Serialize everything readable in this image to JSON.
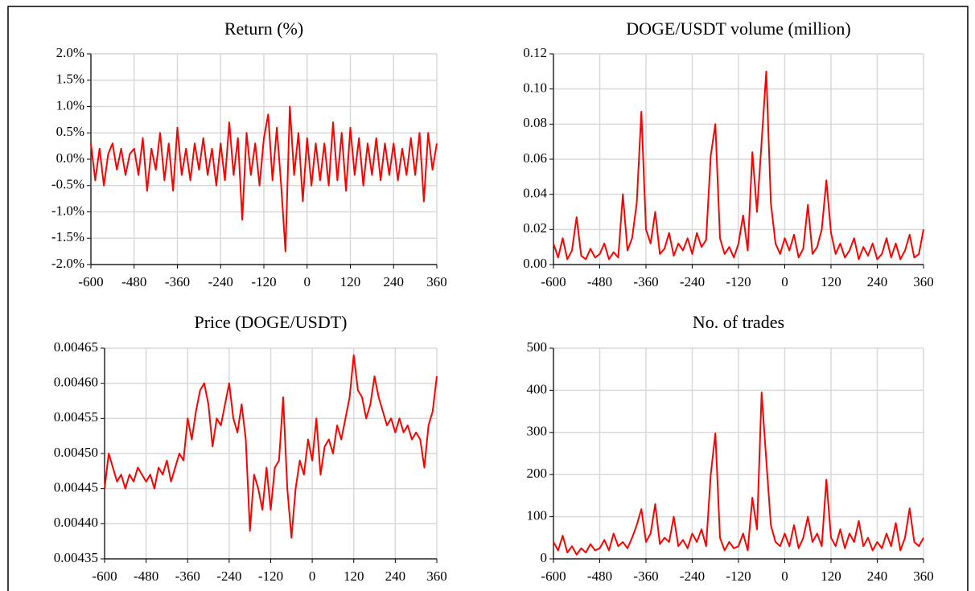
{
  "chart_data": [
    {
      "type": "line",
      "title": "Return (%)",
      "color": "#ff0000",
      "grid": true,
      "x": [
        -600,
        -588,
        -576,
        -564,
        -552,
        -540,
        -528,
        -516,
        -504,
        -492,
        -480,
        -468,
        -456,
        -444,
        -432,
        -420,
        -408,
        -396,
        -384,
        -372,
        -360,
        -348,
        -336,
        -324,
        -312,
        -300,
        -288,
        -276,
        -264,
        -252,
        -240,
        -228,
        -216,
        -204,
        -192,
        -180,
        -168,
        -156,
        -144,
        -132,
        -120,
        -108,
        -96,
        -84,
        -72,
        -60,
        -48,
        -36,
        -24,
        -12,
        0,
        12,
        24,
        36,
        48,
        60,
        72,
        84,
        96,
        108,
        120,
        132,
        144,
        156,
        168,
        180,
        192,
        204,
        216,
        228,
        240,
        252,
        264,
        276,
        288,
        300,
        312,
        324,
        336,
        348,
        360
      ],
      "values": [
        0.3,
        -0.4,
        0.2,
        -0.5,
        0.1,
        0.3,
        -0.2,
        0.2,
        -0.3,
        0.1,
        0.2,
        -0.3,
        0.4,
        -0.6,
        0.2,
        -0.2,
        0.5,
        -0.4,
        0.3,
        -0.6,
        0.6,
        -0.3,
        0.2,
        -0.4,
        0.3,
        -0.2,
        0.4,
        -0.3,
        0.2,
        -0.5,
        0.3,
        -0.4,
        0.7,
        -0.3,
        0.4,
        -1.15,
        0.5,
        -0.3,
        0.3,
        -0.5,
        0.4,
        0.85,
        -0.4,
        0.6,
        -0.5,
        -1.75,
        1.0,
        -0.3,
        0.5,
        -0.8,
        0.4,
        -0.5,
        0.3,
        -0.4,
        0.3,
        -0.5,
        0.7,
        -0.4,
        0.5,
        -0.6,
        0.6,
        -0.3,
        0.4,
        -0.5,
        0.3,
        -0.3,
        0.4,
        -0.4,
        0.3,
        -0.3,
        0.3,
        -0.4,
        0.2,
        -0.3,
        0.4,
        -0.3,
        0.5,
        -0.8,
        0.5,
        -0.2,
        0.3
      ],
      "xlim": [
        -600,
        360
      ],
      "xticks": [
        -600,
        -480,
        -360,
        -240,
        -120,
        0,
        120,
        240,
        360
      ],
      "ylim": [
        -2,
        2
      ],
      "yticks": [
        {
          "value": -2,
          "label": "-2.0%"
        },
        {
          "value": -1.5,
          "label": "-1.5%"
        },
        {
          "value": -1,
          "label": "-1.0%"
        },
        {
          "value": -0.5,
          "label": "-0.5%"
        },
        {
          "value": 0,
          "label": "0.0%"
        },
        {
          "value": 0.5,
          "label": "0.5%"
        },
        {
          "value": 1,
          "label": "1.0%"
        },
        {
          "value": 1.5,
          "label": "1.5%"
        },
        {
          "value": 2,
          "label": "2.0%"
        }
      ]
    },
    {
      "type": "line",
      "title": "DOGE/USDT volume (million)",
      "color": "#ff0000",
      "grid": true,
      "x": [
        -600,
        -588,
        -576,
        -564,
        -552,
        -540,
        -528,
        -516,
        -504,
        -492,
        -480,
        -468,
        -456,
        -444,
        -432,
        -420,
        -408,
        -396,
        -384,
        -372,
        -360,
        -348,
        -336,
        -324,
        -312,
        -300,
        -288,
        -276,
        -264,
        -252,
        -240,
        -228,
        -216,
        -204,
        -192,
        -180,
        -168,
        -156,
        -144,
        -132,
        -120,
        -108,
        -96,
        -84,
        -72,
        -60,
        -48,
        -36,
        -24,
        -12,
        0,
        12,
        24,
        36,
        48,
        60,
        72,
        84,
        96,
        108,
        120,
        132,
        144,
        156,
        168,
        180,
        192,
        204,
        216,
        228,
        240,
        252,
        264,
        276,
        288,
        300,
        312,
        324,
        336,
        348,
        360
      ],
      "values": [
        0.012,
        0.004,
        0.015,
        0.003,
        0.008,
        0.027,
        0.005,
        0.003,
        0.009,
        0.004,
        0.006,
        0.012,
        0.003,
        0.007,
        0.004,
        0.04,
        0.008,
        0.015,
        0.035,
        0.087,
        0.02,
        0.012,
        0.03,
        0.006,
        0.009,
        0.018,
        0.005,
        0.012,
        0.008,
        0.015,
        0.006,
        0.018,
        0.01,
        0.014,
        0.062,
        0.08,
        0.015,
        0.006,
        0.01,
        0.004,
        0.012,
        0.028,
        0.008,
        0.064,
        0.03,
        0.07,
        0.11,
        0.035,
        0.012,
        0.006,
        0.015,
        0.008,
        0.017,
        0.004,
        0.009,
        0.034,
        0.006,
        0.01,
        0.02,
        0.048,
        0.018,
        0.006,
        0.012,
        0.004,
        0.008,
        0.015,
        0.003,
        0.01,
        0.005,
        0.012,
        0.003,
        0.006,
        0.015,
        0.004,
        0.012,
        0.003,
        0.008,
        0.017,
        0.004,
        0.006,
        0.02
      ],
      "xlim": [
        -600,
        360
      ],
      "xticks": [
        -600,
        -480,
        -360,
        -240,
        -120,
        0,
        120,
        240,
        360
      ],
      "ylim": [
        0,
        0.12
      ],
      "yticks": [
        {
          "value": 0,
          "label": "0.00"
        },
        {
          "value": 0.02,
          "label": "0.02"
        },
        {
          "value": 0.04,
          "label": "0.04"
        },
        {
          "value": 0.06,
          "label": "0.06"
        },
        {
          "value": 0.08,
          "label": "0.08"
        },
        {
          "value": 0.1,
          "label": "0.10"
        },
        {
          "value": 0.12,
          "label": "0.12"
        }
      ]
    },
    {
      "type": "line",
      "title": "Price (DOGE/USDT)",
      "color": "#ff0000",
      "grid": true,
      "x": [
        -600,
        -588,
        -576,
        -564,
        -552,
        -540,
        -528,
        -516,
        -504,
        -492,
        -480,
        -468,
        -456,
        -444,
        -432,
        -420,
        -408,
        -396,
        -384,
        -372,
        -360,
        -348,
        -336,
        -324,
        -312,
        -300,
        -288,
        -276,
        -264,
        -252,
        -240,
        -228,
        -216,
        -204,
        -192,
        -180,
        -168,
        -156,
        -144,
        -132,
        -120,
        -108,
        -96,
        -84,
        -72,
        -60,
        -48,
        -36,
        -24,
        -12,
        0,
        12,
        24,
        36,
        48,
        60,
        72,
        84,
        96,
        108,
        120,
        132,
        144,
        156,
        168,
        180,
        192,
        204,
        216,
        228,
        240,
        252,
        264,
        276,
        288,
        300,
        312,
        324,
        336,
        348,
        360
      ],
      "values": [
        0.00445,
        0.0045,
        0.00448,
        0.00446,
        0.00447,
        0.00445,
        0.00447,
        0.00446,
        0.00448,
        0.00447,
        0.00446,
        0.00447,
        0.00445,
        0.00448,
        0.00447,
        0.00449,
        0.00446,
        0.00448,
        0.0045,
        0.00449,
        0.00455,
        0.00452,
        0.00456,
        0.00459,
        0.0046,
        0.00457,
        0.00451,
        0.00455,
        0.00454,
        0.00457,
        0.0046,
        0.00455,
        0.00453,
        0.00457,
        0.00452,
        0.00439,
        0.00447,
        0.00445,
        0.00442,
        0.00448,
        0.00442,
        0.00448,
        0.00449,
        0.00458,
        0.00445,
        0.00438,
        0.00445,
        0.00449,
        0.00447,
        0.00452,
        0.00449,
        0.00455,
        0.00447,
        0.00451,
        0.00452,
        0.0045,
        0.00454,
        0.00452,
        0.00455,
        0.00458,
        0.00464,
        0.00459,
        0.00458,
        0.00455,
        0.00457,
        0.00461,
        0.00458,
        0.00456,
        0.00454,
        0.00455,
        0.00453,
        0.00455,
        0.00453,
        0.00454,
        0.00452,
        0.00453,
        0.00452,
        0.00448,
        0.00454,
        0.00456,
        0.00461
      ],
      "xlim": [
        -600,
        360
      ],
      "xticks": [
        -600,
        -480,
        -360,
        -240,
        -120,
        0,
        120,
        240,
        360
      ],
      "ylim": [
        0.00435,
        0.00465
      ],
      "yticks": [
        0.00435,
        {
          "value": 0.0044,
          "label": "0.00440"
        },
        0.00445,
        {
          "value": 0.0045,
          "label": "0.00450"
        },
        0.00455,
        {
          "value": 0.0046,
          "label": "0.00460"
        },
        0.00465
      ]
    },
    {
      "type": "line",
      "title": "No. of trades",
      "color": "#ff0000",
      "grid": true,
      "x": [
        -600,
        -588,
        -576,
        -564,
        -552,
        -540,
        -528,
        -516,
        -504,
        -492,
        -480,
        -468,
        -456,
        -444,
        -432,
        -420,
        -408,
        -396,
        -384,
        -372,
        -360,
        -348,
        -336,
        -324,
        -312,
        -300,
        -288,
        -276,
        -264,
        -252,
        -240,
        -228,
        -216,
        -204,
        -192,
        -180,
        -168,
        -156,
        -144,
        -132,
        -120,
        -108,
        -96,
        -84,
        -72,
        -60,
        -48,
        -36,
        -24,
        -12,
        0,
        12,
        24,
        36,
        48,
        60,
        72,
        84,
        96,
        108,
        120,
        132,
        144,
        156,
        168,
        180,
        192,
        204,
        216,
        228,
        240,
        252,
        264,
        276,
        288,
        300,
        312,
        324,
        336,
        348,
        360
      ],
      "values": [
        40,
        20,
        55,
        15,
        30,
        10,
        25,
        15,
        35,
        20,
        25,
        45,
        20,
        60,
        30,
        40,
        25,
        50,
        80,
        118,
        40,
        60,
        130,
        35,
        50,
        40,
        100,
        30,
        45,
        25,
        60,
        40,
        70,
        30,
        200,
        298,
        50,
        20,
        40,
        25,
        30,
        60,
        20,
        145,
        70,
        395,
        235,
        80,
        40,
        30,
        60,
        30,
        80,
        25,
        50,
        100,
        40,
        60,
        30,
        188,
        50,
        30,
        70,
        25,
        60,
        40,
        90,
        30,
        50,
        20,
        40,
        25,
        60,
        30,
        85,
        20,
        50,
        120,
        40,
        30,
        50
      ],
      "xlim": [
        -600,
        360
      ],
      "xticks": [
        -600,
        -480,
        -360,
        -240,
        -120,
        0,
        120,
        240,
        360
      ],
      "ylim": [
        0,
        500
      ],
      "yticks": [
        0,
        100,
        200,
        300,
        400,
        500
      ]
    }
  ]
}
